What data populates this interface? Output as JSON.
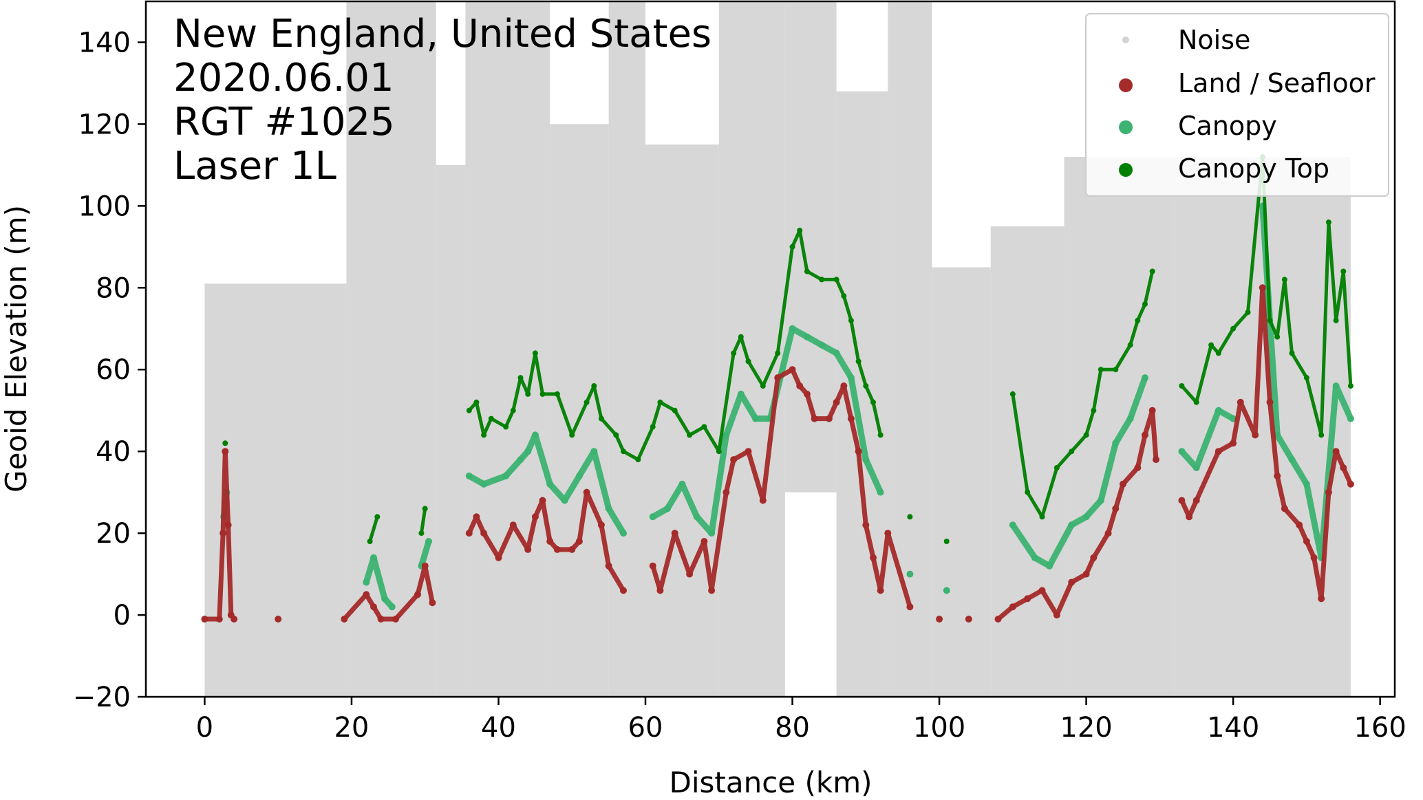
{
  "chart_data": {
    "type": "scatter",
    "title": "",
    "annotation": [
      "New England, United States",
      "2020.06.01",
      "RGT #1025",
      "Laser 1L"
    ],
    "xlabel": "Distance (km)",
    "ylabel": "Geoid Elevation (m)",
    "xlim": [
      -8,
      162
    ],
    "ylim": [
      -20,
      150
    ],
    "xticks": [
      0,
      20,
      40,
      60,
      80,
      100,
      120,
      140,
      160
    ],
    "yticks": [
      -20,
      0,
      20,
      40,
      60,
      80,
      100,
      120,
      140
    ],
    "xtick_labels": [
      "0",
      "20",
      "40",
      "60",
      "80",
      "100",
      "120",
      "140",
      "160"
    ],
    "ytick_labels": [
      "−20",
      "0",
      "20",
      "40",
      "60",
      "80",
      "100",
      "120",
      "140"
    ],
    "grid": false,
    "legend_position": "top-right",
    "series": [
      {
        "name": "Noise",
        "color": "#d3d3d3",
        "bands": [
          {
            "x0": 0,
            "x1": 19.3,
            "ymin": -20,
            "ymax": 81
          },
          {
            "x0": 19.3,
            "x1": 31.5,
            "ymin": -20,
            "ymax": 150
          },
          {
            "x0": 31.5,
            "x1": 35.5,
            "ymin": -20,
            "ymax": 110
          },
          {
            "x0": 35.5,
            "x1": 47,
            "ymin": -20,
            "ymax": 150
          },
          {
            "x0": 47,
            "x1": 55,
            "ymin": -20,
            "ymax": 120
          },
          {
            "x0": 55,
            "x1": 60,
            "ymin": -20,
            "ymax": 150
          },
          {
            "x0": 60,
            "x1": 70,
            "ymin": -20,
            "ymax": 115
          },
          {
            "x0": 70,
            "x1": 79,
            "ymin": -20,
            "ymax": 150
          },
          {
            "x0": 79,
            "x1": 86,
            "ymin": 30,
            "ymax": 150
          },
          {
            "x0": 86,
            "x1": 93,
            "ymin": -20,
            "ymax": 128
          },
          {
            "x0": 93,
            "x1": 99,
            "ymin": -20,
            "ymax": 150
          },
          {
            "x0": 99,
            "x1": 107,
            "ymin": -20,
            "ymax": 85
          },
          {
            "x0": 107,
            "x1": 117,
            "ymin": -20,
            "ymax": 95
          },
          {
            "x0": 117,
            "x1": 132,
            "ymin": -20,
            "ymax": 112
          },
          {
            "x0": 132,
            "x1": 156,
            "ymin": -20,
            "ymax": 112
          }
        ]
      },
      {
        "name": "Land / Seafloor",
        "color": "#a52a2a",
        "points": [
          [
            0,
            -1
          ],
          [
            2,
            -1
          ],
          [
            2.5,
            20
          ],
          [
            2.8,
            40
          ],
          [
            3.2,
            22
          ],
          [
            3.6,
            0
          ],
          [
            4,
            -1
          ],
          [
            10,
            -1
          ],
          [
            19,
            -1
          ],
          [
            22,
            5
          ],
          [
            23,
            2
          ],
          [
            24,
            -1
          ],
          [
            26,
            -1
          ],
          [
            29,
            5
          ],
          [
            30,
            12
          ],
          [
            31,
            3
          ],
          [
            36,
            20
          ],
          [
            37,
            24
          ],
          [
            38,
            20
          ],
          [
            40,
            14
          ],
          [
            42,
            22
          ],
          [
            44,
            16
          ],
          [
            45,
            24
          ],
          [
            46,
            28
          ],
          [
            47,
            18
          ],
          [
            48,
            16
          ],
          [
            50,
            16
          ],
          [
            51,
            18
          ],
          [
            52,
            30
          ],
          [
            54,
            22
          ],
          [
            55,
            12
          ],
          [
            57,
            6
          ],
          [
            61,
            12
          ],
          [
            62,
            6
          ],
          [
            64,
            20
          ],
          [
            66,
            10
          ],
          [
            68,
            18
          ],
          [
            69,
            6
          ],
          [
            71,
            30
          ],
          [
            72,
            38
          ],
          [
            74,
            40
          ],
          [
            76,
            28
          ],
          [
            78,
            58
          ],
          [
            80,
            60
          ],
          [
            81,
            56
          ],
          [
            82,
            54
          ],
          [
            83,
            48
          ],
          [
            85,
            48
          ],
          [
            86,
            52
          ],
          [
            87,
            56
          ],
          [
            88,
            48
          ],
          [
            89,
            40
          ],
          [
            90,
            22
          ],
          [
            91,
            14
          ],
          [
            92,
            6
          ],
          [
            93,
            20
          ],
          [
            96,
            2
          ],
          [
            100,
            -1
          ],
          [
            104,
            -1
          ],
          [
            108,
            -1
          ],
          [
            110,
            2
          ],
          [
            112,
            4
          ],
          [
            114,
            6
          ],
          [
            116,
            0
          ],
          [
            118,
            8
          ],
          [
            120,
            10
          ],
          [
            121,
            14
          ],
          [
            123,
            20
          ],
          [
            124,
            26
          ],
          [
            125,
            32
          ],
          [
            127,
            36
          ],
          [
            128,
            44
          ],
          [
            129,
            50
          ],
          [
            129.5,
            38
          ],
          [
            133,
            28
          ],
          [
            134,
            24
          ],
          [
            135,
            28
          ],
          [
            138,
            40
          ],
          [
            140,
            42
          ],
          [
            141,
            52
          ],
          [
            143,
            44
          ],
          [
            144,
            80
          ],
          [
            145,
            52
          ],
          [
            146,
            34
          ],
          [
            147,
            26
          ],
          [
            149,
            22
          ],
          [
            150,
            18
          ],
          [
            151,
            14
          ],
          [
            152,
            4
          ],
          [
            153,
            30
          ],
          [
            154,
            40
          ],
          [
            155,
            36
          ],
          [
            156,
            32
          ]
        ]
      },
      {
        "name": "Canopy",
        "color": "#3cb371",
        "points": [
          [
            2.6,
            24
          ],
          [
            3,
            30
          ],
          [
            22,
            8
          ],
          [
            23,
            14
          ],
          [
            24.5,
            4
          ],
          [
            25.5,
            2
          ],
          [
            29.5,
            12
          ],
          [
            30.5,
            18
          ],
          [
            36,
            34
          ],
          [
            38,
            32
          ],
          [
            41,
            34
          ],
          [
            43,
            38
          ],
          [
            44,
            40
          ],
          [
            45,
            44
          ],
          [
            47,
            32
          ],
          [
            49,
            28
          ],
          [
            51,
            34
          ],
          [
            53,
            40
          ],
          [
            55,
            26
          ],
          [
            57,
            20
          ],
          [
            61,
            24
          ],
          [
            63,
            26
          ],
          [
            65,
            32
          ],
          [
            67,
            24
          ],
          [
            69,
            20
          ],
          [
            71,
            44
          ],
          [
            73,
            54
          ],
          [
            75,
            48
          ],
          [
            77,
            48
          ],
          [
            80,
            70
          ],
          [
            82,
            68
          ],
          [
            84,
            66
          ],
          [
            86,
            64
          ],
          [
            88,
            58
          ],
          [
            90,
            38
          ],
          [
            92,
            30
          ],
          [
            96,
            10
          ],
          [
            101,
            6
          ],
          [
            110,
            22
          ],
          [
            113,
            14
          ],
          [
            115,
            12
          ],
          [
            118,
            22
          ],
          [
            120,
            24
          ],
          [
            122,
            28
          ],
          [
            124,
            42
          ],
          [
            126,
            48
          ],
          [
            128,
            58
          ],
          [
            133,
            40
          ],
          [
            135,
            36
          ],
          [
            138,
            50
          ],
          [
            140,
            48
          ],
          [
            144,
            100
          ],
          [
            146,
            44
          ],
          [
            148,
            38
          ],
          [
            150,
            32
          ],
          [
            152,
            14
          ],
          [
            154,
            56
          ],
          [
            156,
            48
          ]
        ]
      },
      {
        "name": "Canopy Top",
        "color": "#008000",
        "points": [
          [
            2.8,
            42
          ],
          [
            22.5,
            18
          ],
          [
            23.5,
            24
          ],
          [
            29.5,
            20
          ],
          [
            30,
            26
          ],
          [
            36,
            50
          ],
          [
            37,
            52
          ],
          [
            38,
            44
          ],
          [
            39,
            48
          ],
          [
            41,
            46
          ],
          [
            42,
            50
          ],
          [
            43,
            58
          ],
          [
            44,
            54
          ],
          [
            45,
            64
          ],
          [
            46,
            54
          ],
          [
            48,
            54
          ],
          [
            50,
            44
          ],
          [
            52,
            52
          ],
          [
            53,
            56
          ],
          [
            54,
            48
          ],
          [
            56,
            44
          ],
          [
            57,
            40
          ],
          [
            59,
            38
          ],
          [
            61,
            46
          ],
          [
            62,
            52
          ],
          [
            64,
            50
          ],
          [
            66,
            44
          ],
          [
            68,
            46
          ],
          [
            70,
            40
          ],
          [
            72,
            64
          ],
          [
            73,
            68
          ],
          [
            74,
            62
          ],
          [
            76,
            56
          ],
          [
            78,
            64
          ],
          [
            80,
            90
          ],
          [
            81,
            94
          ],
          [
            82,
            84
          ],
          [
            84,
            82
          ],
          [
            86,
            82
          ],
          [
            87,
            78
          ],
          [
            88,
            72
          ],
          [
            89,
            62
          ],
          [
            90,
            56
          ],
          [
            91,
            52
          ],
          [
            92,
            44
          ],
          [
            96,
            24
          ],
          [
            101,
            18
          ],
          [
            110,
            54
          ],
          [
            112,
            30
          ],
          [
            114,
            24
          ],
          [
            116,
            36
          ],
          [
            118,
            40
          ],
          [
            120,
            44
          ],
          [
            121,
            50
          ],
          [
            122,
            60
          ],
          [
            124,
            60
          ],
          [
            126,
            66
          ],
          [
            127,
            72
          ],
          [
            128,
            76
          ],
          [
            129,
            84
          ],
          [
            133,
            56
          ],
          [
            135,
            52
          ],
          [
            137,
            66
          ],
          [
            138,
            64
          ],
          [
            140,
            70
          ],
          [
            142,
            74
          ],
          [
            144,
            112
          ],
          [
            145,
            72
          ],
          [
            146,
            68
          ],
          [
            147,
            82
          ],
          [
            148,
            64
          ],
          [
            150,
            58
          ],
          [
            152,
            44
          ],
          [
            153,
            96
          ],
          [
            154,
            72
          ],
          [
            155,
            84
          ],
          [
            156,
            56
          ]
        ]
      }
    ]
  }
}
